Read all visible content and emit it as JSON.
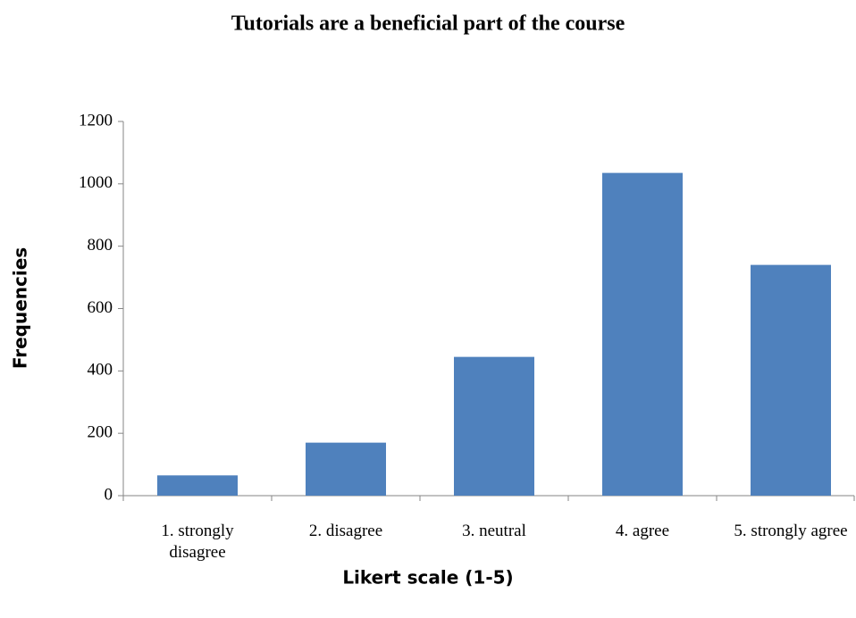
{
  "chart_data": {
    "type": "bar",
    "title": "Tutorials are a beneficial part of the course",
    "x_label": "Likert scale (1-5)",
    "y_label": "Frequencies",
    "categories": [
      "1. strongly disagree",
      "2. disagree",
      "3. neutral",
      "4. agree",
      "5. strongly agree"
    ],
    "values": [
      65,
      170,
      445,
      1035,
      740
    ],
    "color": "#4f81bd",
    "ylim": [
      0,
      1200
    ],
    "yticks": [
      0,
      200,
      400,
      600,
      800,
      1000,
      1200
    ],
    "grid": false
  }
}
